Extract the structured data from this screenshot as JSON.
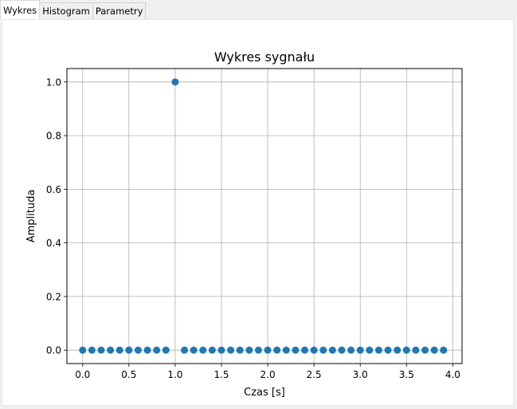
{
  "tabs": [
    {
      "label": "Wykres",
      "active": true
    },
    {
      "label": "Histogram",
      "active": false
    },
    {
      "label": "Parametry",
      "active": false
    }
  ],
  "chart_data": {
    "type": "scatter",
    "title": "Wykres sygnału",
    "xlabel": "Czas [s]",
    "ylabel": "Amplituda",
    "xlim": [
      -0.17,
      4.1
    ],
    "ylim": [
      -0.05,
      1.05
    ],
    "xticks": [
      "0.0",
      "0.5",
      "1.0",
      "1.5",
      "2.0",
      "2.5",
      "3.0",
      "3.5",
      "4.0"
    ],
    "yticks": [
      "0.0",
      "0.2",
      "0.4",
      "0.6",
      "0.8",
      "1.0"
    ],
    "grid": true,
    "marker_color": "#1f77b4",
    "x": [
      0.0,
      0.1,
      0.2,
      0.3,
      0.4,
      0.5,
      0.6,
      0.7,
      0.8,
      0.9,
      1.0,
      1.1,
      1.2,
      1.3,
      1.4,
      1.5,
      1.6,
      1.7,
      1.8,
      1.9,
      2.0,
      2.1,
      2.2,
      2.3,
      2.4,
      2.5,
      2.6,
      2.7,
      2.8,
      2.9,
      3.0,
      3.1,
      3.2,
      3.3,
      3.4,
      3.5,
      3.6,
      3.7,
      3.8,
      3.9
    ],
    "y": [
      0,
      0,
      0,
      0,
      0,
      0,
      0,
      0,
      0,
      0,
      1,
      0,
      0,
      0,
      0,
      0,
      0,
      0,
      0,
      0,
      0,
      0,
      0,
      0,
      0,
      0,
      0,
      0,
      0,
      0,
      0,
      0,
      0,
      0,
      0,
      0,
      0,
      0,
      0,
      0
    ]
  }
}
